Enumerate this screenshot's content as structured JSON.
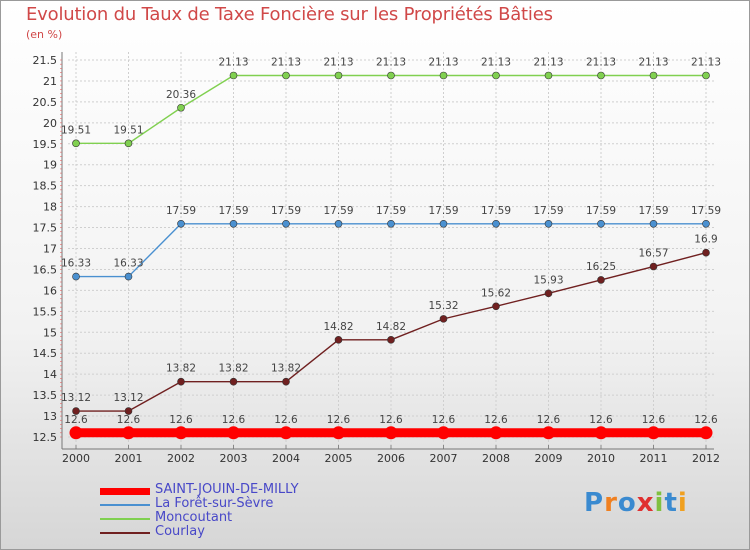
{
  "chart_data": {
    "type": "line",
    "title": "Evolution du Taux de Taxe Foncière sur les Propriétés Bâties",
    "unit_label": "(en %)",
    "x": [
      "2000",
      "2001",
      "2002",
      "2003",
      "2004",
      "2005",
      "2006",
      "2007",
      "2008",
      "2009",
      "2010",
      "2011",
      "2012"
    ],
    "ylim": [
      12.5,
      21.5
    ],
    "y_ticks": [
      "12.5",
      "13",
      "13.5",
      "14",
      "14.5",
      "15",
      "15.5",
      "16",
      "16.5",
      "17",
      "17.5",
      "18",
      "18.5",
      "19",
      "19.5",
      "20",
      "20.5",
      "21",
      "21.5"
    ],
    "grid": true,
    "legend_position": "bottom-left",
    "series": [
      {
        "name": "SAINT-JOUIN-DE-MILLY",
        "color": "#ff0000",
        "values": [
          12.6,
          12.6,
          12.6,
          12.6,
          12.6,
          12.6,
          12.6,
          12.6,
          12.6,
          12.6,
          12.6,
          12.6,
          12.6
        ],
        "labels": [
          "12.6",
          "12.6",
          "12.6",
          "12.6",
          "12.6",
          "12.6",
          "12.6",
          "12.6",
          "12.6",
          "12.6",
          "12.6",
          "12.6",
          "12.6"
        ]
      },
      {
        "name": "La Forêt-sur-Sèvre",
        "color": "#4a90d0",
        "values": [
          16.33,
          16.33,
          17.59,
          17.59,
          17.59,
          17.59,
          17.59,
          17.59,
          17.59,
          17.59,
          17.59,
          17.59,
          17.59
        ],
        "labels": [
          "16.33",
          "16.33",
          "17.59",
          "17.59",
          "17.59",
          "17.59",
          "17.59",
          "17.59",
          "17.59",
          "17.59",
          "17.59",
          "17.59",
          "17.59"
        ]
      },
      {
        "name": "Moncoutant",
        "color": "#80d050",
        "values": [
          19.51,
          19.51,
          20.36,
          21.13,
          21.13,
          21.13,
          21.13,
          21.13,
          21.13,
          21.13,
          21.13,
          21.13,
          21.13
        ],
        "labels": [
          "19.51",
          "19.51",
          "20.36",
          "21.13",
          "21.13",
          "21.13",
          "21.13",
          "21.13",
          "21.13",
          "21.13",
          "21.13",
          "21.13",
          "21.13"
        ]
      },
      {
        "name": "Courlay",
        "color": "#702020",
        "values": [
          13.12,
          13.12,
          13.82,
          13.82,
          13.82,
          14.82,
          14.82,
          15.32,
          15.62,
          15.93,
          16.25,
          16.57,
          16.9
        ],
        "labels": [
          "13.12",
          "13.12",
          "13.82",
          "13.82",
          "13.82",
          "14.82",
          "14.82",
          "15.32",
          "15.62",
          "15.93",
          "16.25",
          "16.57",
          "16.9"
        ]
      }
    ]
  },
  "logo": {
    "text": "Proxiti",
    "letters": [
      "P",
      "r",
      "o",
      "x",
      "i",
      "t",
      "i"
    ],
    "colors": [
      "#3a8ad0",
      "#f08020",
      "#3a8ad0",
      "#e03030",
      "#80c040",
      "#3a8ad0",
      "#f0a020"
    ]
  }
}
